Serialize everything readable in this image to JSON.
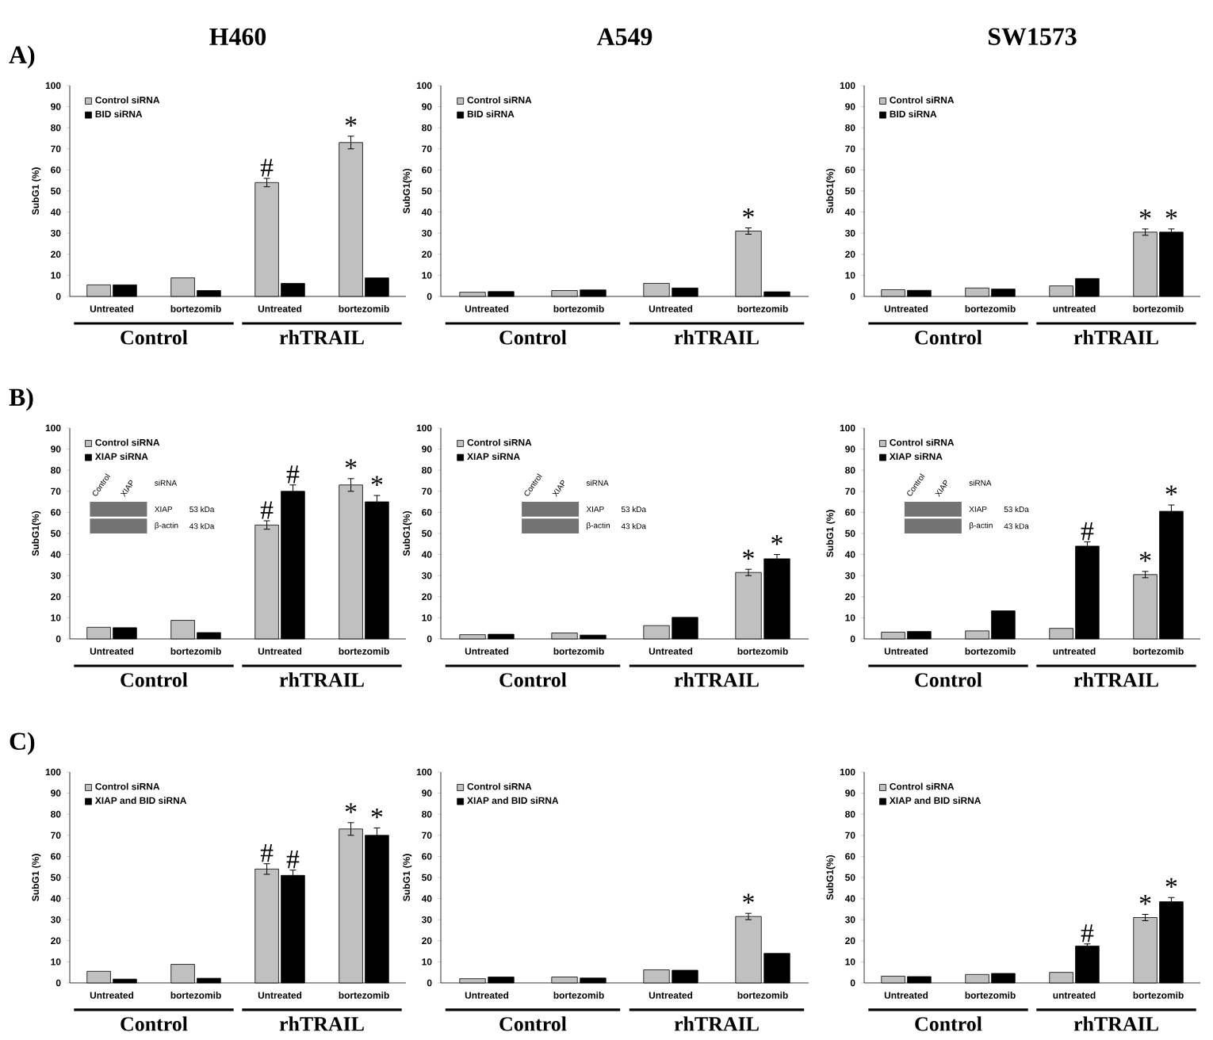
{
  "chart_data": [
    {
      "type": "bar",
      "title": "H460",
      "ylabel": "SubG1 (%)",
      "categories": [
        "Untreated",
        "bortezomib",
        "Untreated",
        "bortezomib"
      ],
      "ylim": [
        0,
        100
      ],
      "yticks": [
        0,
        10,
        20,
        30,
        40,
        50,
        60,
        70,
        80,
        90,
        100
      ],
      "legend": "top left",
      "annotations": [
        "Control",
        "rhTRAIL",
        "A)"
      ],
      "series": [
        {
          "name": "Control siRNA",
          "color": "#c0c0c0",
          "values": [
            5.5,
            8.8,
            54,
            73
          ],
          "errors": [
            null,
            null,
            2,
            3
          ],
          "value_labels": [
            null,
            null,
            "#",
            "*"
          ]
        },
        {
          "name": "BID siRNA",
          "color": "#000000",
          "values": [
            5.5,
            2.8,
            6.2,
            8.8
          ]
        }
      ]
    },
    {
      "type": "bar",
      "title": "A549",
      "ylabel": "SubG1(%)",
      "categories": [
        "Untreated",
        "bortezomib",
        "Untreated",
        "bortezomib"
      ],
      "ylim": [
        0,
        100
      ],
      "yticks": [
        0,
        10,
        20,
        30,
        40,
        50,
        60,
        70,
        80,
        90,
        100
      ],
      "legend": "top left",
      "annotations": [
        "Control",
        "rhTRAIL"
      ],
      "series": [
        {
          "name": "Control siRNA",
          "color": "#c0c0c0",
          "values": [
            2,
            2.8,
            6.2,
            31
          ],
          "errors": [
            null,
            null,
            null,
            1.5
          ],
          "value_labels": [
            null,
            null,
            null,
            "*"
          ]
        },
        {
          "name": "BID siRNA",
          "color": "#000000",
          "values": [
            2.3,
            3.1,
            4,
            2.2
          ]
        }
      ]
    },
    {
      "type": "bar",
      "title": "SW1573",
      "ylabel": "SubG1(%)",
      "categories": [
        "Untreated",
        "bortezomib",
        "untreated",
        "bortezomib"
      ],
      "ylim": [
        0,
        100
      ],
      "yticks": [
        0,
        10,
        20,
        30,
        40,
        50,
        60,
        70,
        80,
        90,
        100
      ],
      "legend": "top left",
      "annotations": [
        "Control",
        "rhTRAIL"
      ],
      "series": [
        {
          "name": "Control siRNA",
          "color": "#c0c0c0",
          "values": [
            3.2,
            4,
            5,
            30.5
          ],
          "errors": [
            null,
            null,
            null,
            1.5
          ],
          "value_labels": [
            null,
            null,
            null,
            "*"
          ]
        },
        {
          "name": "BID siRNA",
          "color": "#000000",
          "values": [
            2.9,
            3.5,
            8.5,
            30.5
          ],
          "errors": [
            null,
            null,
            null,
            1.5
          ],
          "value_labels": [
            null,
            null,
            null,
            "*"
          ]
        }
      ]
    },
    {
      "type": "bar",
      "ylabel": "SubG1(%)",
      "categories": [
        "Untreated",
        "bortezomib",
        "Untreated",
        "bortezomib"
      ],
      "ylim": [
        0,
        100
      ],
      "yticks": [
        0,
        10,
        20,
        30,
        40,
        50,
        60,
        70,
        80,
        90,
        100
      ],
      "legend": "top left",
      "annotations": [
        "Control",
        "rhTRAIL",
        "B)",
        "Control",
        "XIAP",
        "siRNA",
        "XIAP",
        "53 kDa",
        "β-actin",
        "43 kDa"
      ],
      "series": [
        {
          "name": "Control siRNA",
          "color": "#c0c0c0",
          "values": [
            5.5,
            8.8,
            54,
            73
          ],
          "errors": [
            null,
            null,
            2,
            3
          ],
          "value_labels": [
            null,
            null,
            "#",
            "*"
          ]
        },
        {
          "name": "XIAP siRNA",
          "color": "#000000",
          "values": [
            5.3,
            3,
            70,
            65
          ],
          "errors": [
            null,
            null,
            3,
            3
          ],
          "value_labels": [
            null,
            null,
            "#",
            "*"
          ]
        }
      ]
    },
    {
      "type": "bar",
      "ylabel": "SubG1(%)",
      "categories": [
        "Untreated",
        "bortezomib",
        "Untreated",
        "bortezomib"
      ],
      "ylim": [
        0,
        100
      ],
      "yticks": [
        0,
        10,
        20,
        30,
        40,
        50,
        60,
        70,
        80,
        90,
        100
      ],
      "legend": "top left",
      "annotations": [
        "Control",
        "rhTRAIL",
        "Control",
        "XIAP",
        "siRNA",
        "XIAP",
        "53 kDa",
        "β-actin",
        "43 kDa"
      ],
      "series": [
        {
          "name": "Control siRNA",
          "color": "#c0c0c0",
          "values": [
            2,
            2.8,
            6.3,
            31.5
          ],
          "errors": [
            null,
            null,
            null,
            1.5
          ],
          "value_labels": [
            null,
            null,
            null,
            "*"
          ]
        },
        {
          "name": "XIAP siRNA",
          "color": "#000000",
          "values": [
            2.2,
            1.8,
            10.2,
            38
          ],
          "errors": [
            null,
            null,
            null,
            2
          ],
          "value_labels": [
            null,
            null,
            null,
            "*"
          ]
        }
      ]
    },
    {
      "type": "bar",
      "ylabel": "SubG1 (%)",
      "categories": [
        "Untreated",
        "bortezomib",
        "untreated",
        "bortezomib"
      ],
      "ylim": [
        0,
        100
      ],
      "yticks": [
        0,
        10,
        20,
        30,
        40,
        50,
        60,
        70,
        80,
        90,
        100
      ],
      "legend": "top left",
      "annotations": [
        "Control",
        "rhTRAIL",
        "Control",
        "XIAP",
        "siRNA",
        "XIAP",
        "53 kDa",
        "β-actin",
        "43 kDa"
      ],
      "series": [
        {
          "name": "Control siRNA",
          "color": "#c0c0c0",
          "values": [
            3.2,
            3.8,
            5,
            30.5
          ],
          "errors": [
            null,
            null,
            null,
            1.5
          ],
          "value_labels": [
            null,
            null,
            null,
            "*"
          ]
        },
        {
          "name": "XIAP siRNA",
          "color": "#000000",
          "values": [
            3.5,
            13.3,
            44,
            60.5
          ],
          "errors": [
            null,
            null,
            2,
            3
          ],
          "value_labels": [
            null,
            null,
            "#",
            "*"
          ]
        }
      ]
    },
    {
      "type": "bar",
      "ylabel": "SubG1 (%)",
      "categories": [
        "Untreated",
        "bortezomib",
        "Untreated",
        "bortezomib"
      ],
      "ylim": [
        0,
        100
      ],
      "yticks": [
        0,
        10,
        20,
        30,
        40,
        50,
        60,
        70,
        80,
        90,
        100
      ],
      "legend": "top left",
      "annotations": [
        "Control",
        "rhTRAIL",
        "C)"
      ],
      "series": [
        {
          "name": "Control siRNA",
          "color": "#c0c0c0",
          "values": [
            5.5,
            8.8,
            54,
            73
          ],
          "errors": [
            null,
            null,
            2.5,
            3
          ],
          "value_labels": [
            null,
            null,
            "#",
            "*"
          ]
        },
        {
          "name": "XIAP and BID siRNA",
          "color": "#000000",
          "values": [
            1.8,
            2.2,
            51,
            70
          ],
          "errors": [
            null,
            null,
            2.5,
            3.5
          ],
          "value_labels": [
            null,
            null,
            "#",
            "*"
          ]
        }
      ]
    },
    {
      "type": "bar",
      "ylabel": "SubG1 (%)",
      "categories": [
        "Untreated",
        "bortezomib",
        "Untreated",
        "bortezomib"
      ],
      "ylim": [
        0,
        100
      ],
      "yticks": [
        0,
        10,
        20,
        30,
        40,
        50,
        60,
        70,
        80,
        90,
        100
      ],
      "legend": "top left",
      "annotations": [
        "Control",
        "rhTRAIL"
      ],
      "series": [
        {
          "name": "Control siRNA",
          "color": "#c0c0c0",
          "values": [
            2,
            2.8,
            6.2,
            31.5
          ],
          "errors": [
            null,
            null,
            null,
            1.5
          ],
          "value_labels": [
            null,
            null,
            null,
            "*"
          ]
        },
        {
          "name": "XIAP and BID siRNA",
          "color": "#000000",
          "values": [
            2.8,
            2.3,
            6,
            14
          ]
        }
      ]
    },
    {
      "type": "bar",
      "ylabel": "SubG1(%)",
      "categories": [
        "Untreated",
        "bortezomib",
        "untreated",
        "bortezomib"
      ],
      "ylim": [
        0,
        100
      ],
      "yticks": [
        0,
        10,
        20,
        30,
        40,
        50,
        60,
        70,
        80,
        90,
        100
      ],
      "legend": "top left",
      "annotations": [
        "Control",
        "rhTRAIL"
      ],
      "series": [
        {
          "name": "Control siRNA",
          "color": "#c0c0c0",
          "values": [
            3.2,
            4,
            5,
            31
          ],
          "errors": [
            null,
            null,
            null,
            1.5
          ],
          "value_labels": [
            null,
            null,
            null,
            "*"
          ]
        },
        {
          "name": "XIAP and BID siRNA",
          "color": "#000000",
          "values": [
            3,
            4.5,
            17.5,
            38.5
          ],
          "errors": [
            null,
            null,
            1,
            2
          ],
          "value_labels": [
            null,
            null,
            "#",
            "*"
          ]
        }
      ]
    }
  ]
}
